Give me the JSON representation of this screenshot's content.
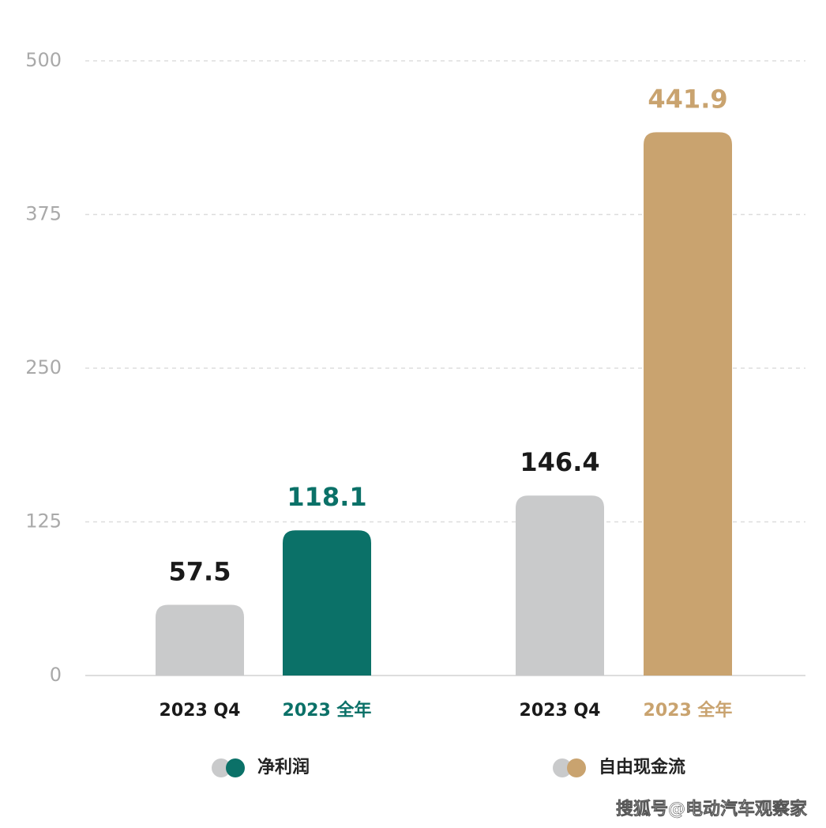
{
  "chart_data": {
    "type": "bar",
    "ylim": [
      0,
      500
    ],
    "yticks": [
      0,
      125,
      250,
      375,
      500
    ],
    "grid": true,
    "groups": [
      {
        "name": "净利润",
        "categories": [
          "2023 Q4",
          "2023 全年"
        ],
        "values": [
          57.5,
          118.1
        ],
        "colors": [
          "#c9cacb",
          "#0b7168"
        ]
      },
      {
        "name": "自由现金流",
        "categories": [
          "2023 Q4",
          "2023 全年"
        ],
        "values": [
          146.4,
          441.9
        ],
        "colors": [
          "#c9cacb",
          "#c9a36f"
        ]
      }
    ]
  },
  "watermark": "搜狐号@电动汽车观察家"
}
